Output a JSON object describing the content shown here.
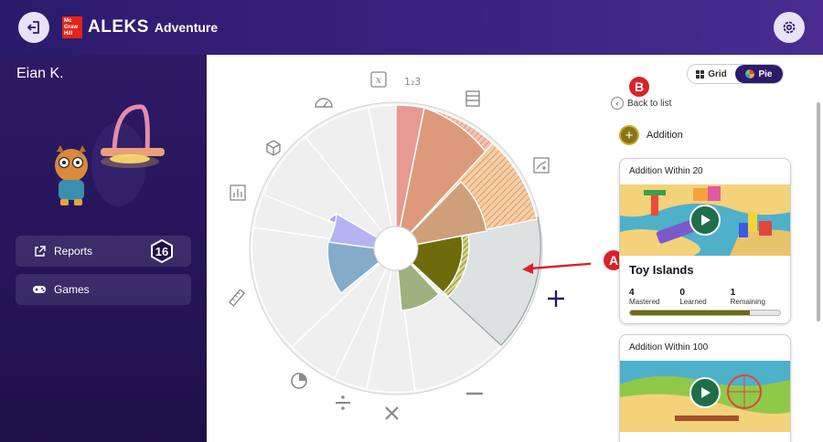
{
  "header": {
    "logo_brand": "Mc Graw Hill",
    "logo_name": "ALEKS",
    "logo_suffix": "Adventure"
  },
  "sidebar": {
    "student_name": "Eian K.",
    "reports_label": "Reports",
    "reports_count": "16",
    "games_label": "Games"
  },
  "view_toggle": {
    "grid_label": "Grid",
    "pie_label": "Pie",
    "selected": "Pie"
  },
  "callouts": {
    "a": "A",
    "b": "B"
  },
  "back_label": "Back to list",
  "topic": {
    "label": "Addition",
    "color": "#8a7412"
  },
  "pie_icons": [
    "x-variable-icon",
    "123-icon",
    "abacus-icon",
    "graph-icon",
    "plus-icon",
    "minus-icon",
    "times-icon",
    "divide-icon",
    "pie-chart-icon",
    "ruler-icon",
    "bar-chart-icon",
    "cube-icon",
    "protractor-icon"
  ],
  "cards": [
    {
      "title": "Addition Within 20",
      "game_name": "Toy Islands",
      "mastered": 4,
      "mastered_label": "Mastered",
      "learned": 0,
      "learned_label": "Learned",
      "remaining": 1,
      "remaining_label": "Remaining",
      "progress": 0.8
    },
    {
      "title": "Addition Within 100"
    }
  ]
}
